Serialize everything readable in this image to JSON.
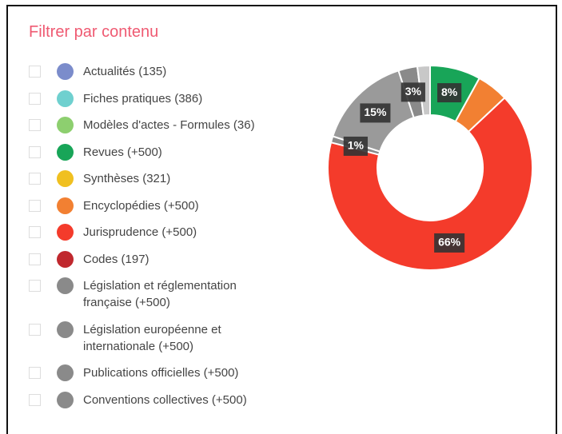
{
  "filter": {
    "title": "Filtrer par contenu",
    "items": [
      {
        "label": "Actualités (135)",
        "color": "#7b8ccb"
      },
      {
        "label": "Fiches pratiques (386)",
        "color": "#6fd0cf"
      },
      {
        "label": "Modèles d'actes - Formules (36)",
        "color": "#8dcf6f"
      },
      {
        "label": "Revues (+500)",
        "color": "#18a558"
      },
      {
        "label": "Synthèses (321)",
        "color": "#f0c020"
      },
      {
        "label": "Encyclopédies (+500)",
        "color": "#f28032"
      },
      {
        "label": "Jurisprudence (+500)",
        "color": "#f43b2b"
      },
      {
        "label": "Codes (197)",
        "color": "#c0282e"
      },
      {
        "label": "Législation et réglementation française (+500)",
        "color": "#8a8a8a"
      },
      {
        "label": "Législation européenne et internationale (+500)",
        "color": "#8a8a8a"
      },
      {
        "label": "Publications officielles (+500)",
        "color": "#8a8a8a"
      },
      {
        "label": "Conventions collectives (+500)",
        "color": "#8a8a8a"
      }
    ]
  },
  "chart_data": {
    "type": "pie",
    "donut": true,
    "values": [
      8,
      5,
      66,
      1,
      15,
      3,
      2
    ],
    "value_labels": [
      "8%",
      null,
      "66%",
      "1%",
      "15%",
      "3%",
      null
    ],
    "colors": [
      "#18a558",
      "#f28032",
      "#f43b2b",
      "#8a8a8a",
      "#9a9a9a",
      "#8a8a8a",
      "#c8c8c8"
    ]
  }
}
